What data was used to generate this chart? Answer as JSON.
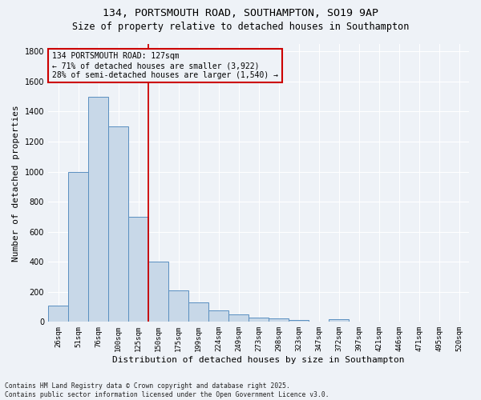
{
  "title_line1": "134, PORTSMOUTH ROAD, SOUTHAMPTON, SO19 9AP",
  "title_line2": "Size of property relative to detached houses in Southampton",
  "xlabel": "Distribution of detached houses by size in Southampton",
  "ylabel": "Number of detached properties",
  "categories": [
    "26sqm",
    "51sqm",
    "76sqm",
    "100sqm",
    "125sqm",
    "150sqm",
    "175sqm",
    "199sqm",
    "224sqm",
    "249sqm",
    "273sqm",
    "298sqm",
    "323sqm",
    "347sqm",
    "372sqm",
    "397sqm",
    "421sqm",
    "446sqm",
    "471sqm",
    "495sqm",
    "520sqm"
  ],
  "values": [
    110,
    1000,
    1500,
    1300,
    700,
    400,
    210,
    130,
    75,
    50,
    30,
    25,
    15,
    0,
    20,
    0,
    0,
    0,
    0,
    0,
    0
  ],
  "bar_color": "#c8d8e8",
  "bar_edge_color": "#5a8fc0",
  "background_color": "#eef2f7",
  "grid_color": "#ffffff",
  "vline_x": 4.5,
  "vline_color": "#cc0000",
  "annotation_text": "134 PORTSMOUTH ROAD: 127sqm\n← 71% of detached houses are smaller (3,922)\n28% of semi-detached houses are larger (1,540) →",
  "annotation_box_color": "#cc0000",
  "ylim": [
    0,
    1850
  ],
  "yticks": [
    0,
    200,
    400,
    600,
    800,
    1000,
    1200,
    1400,
    1600,
    1800
  ],
  "footnote": "Contains HM Land Registry data © Crown copyright and database right 2025.\nContains public sector information licensed under the Open Government Licence v3.0.",
  "title_fontsize": 9.5,
  "subtitle_fontsize": 8.5,
  "tick_fontsize": 6.5,
  "label_fontsize": 8,
  "annotation_fontsize": 7,
  "footnote_fontsize": 5.8
}
